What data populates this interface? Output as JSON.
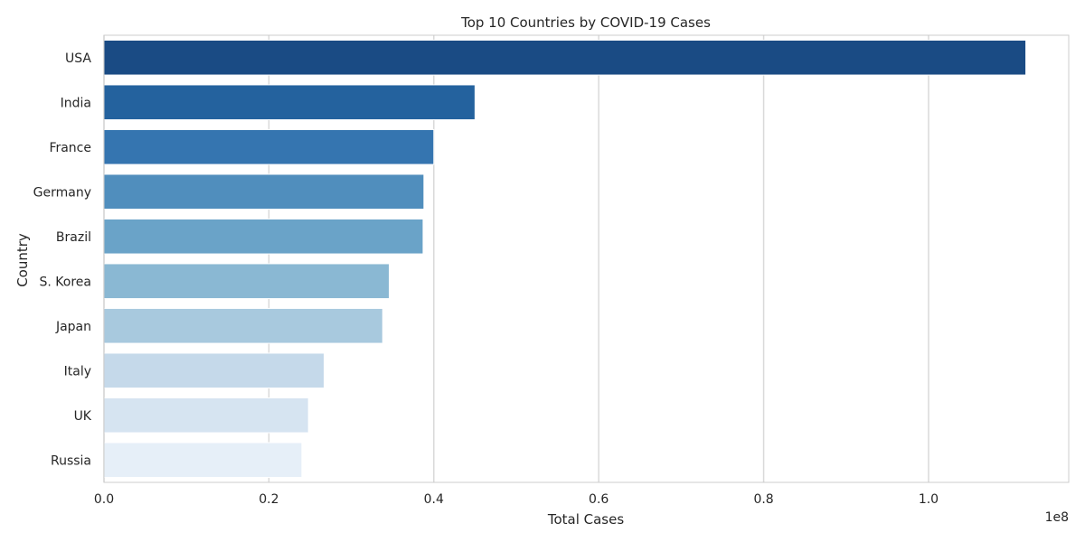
{
  "chart_data": {
    "type": "bar",
    "orientation": "horizontal",
    "title": "Top 10 Countries by COVID-19 Cases",
    "xlabel": "Total Cases",
    "ylabel": "Country",
    "offset_text": "1e8",
    "categories": [
      "USA",
      "India",
      "France",
      "Germany",
      "Brazil",
      "S. Korea",
      "Japan",
      "Italy",
      "UK",
      "Russia"
    ],
    "values": [
      111800000,
      45000000,
      40000000,
      38800000,
      38700000,
      34600000,
      33800000,
      26700000,
      24800000,
      24000000
    ],
    "xlim": [
      0,
      117000000
    ],
    "xticks": [
      0,
      20000000,
      40000000,
      60000000,
      80000000,
      100000000
    ],
    "xtick_labels": [
      "0.0",
      "0.2",
      "0.4",
      "0.6",
      "0.8",
      "1.0"
    ],
    "grid": "vertical",
    "colors": [
      "#1a4b84",
      "#24629e",
      "#3575b0",
      "#508ebd",
      "#6aa3c8",
      "#8ab8d3",
      "#a8c9de",
      "#c5d9ea",
      "#d6e4f1",
      "#e6eff8"
    ]
  }
}
